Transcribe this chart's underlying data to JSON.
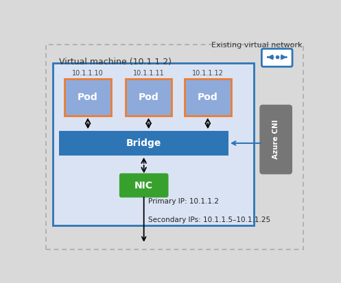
{
  "bg_outer_color": "#d9d9d9",
  "bg_vm_fill": "#dae3f3",
  "bg_vm_edge": "#2e75b6",
  "pod_fill": "#8eaadb",
  "pod_edge": "#ed7d31",
  "bridge_fill": "#2e75b6",
  "bridge_text_color": "#ffffff",
  "nic_fill": "#38a12e",
  "nic_text_color": "#ffffff",
  "azure_cni_fill": "#767676",
  "azure_cni_text_color": "#ffffff",
  "existing_vnet_label": "Existing virtual network",
  "vm_label": "Virtual machine (10.1.1.2)",
  "pod_ips": [
    "10.1.1.10",
    "10.1.1.11",
    "10.1.1.12"
  ],
  "bridge_label": "Bridge",
  "nic_label": "NIC",
  "azure_cni_label": "Azure CNI",
  "primary_ip_label": "Primary IP: 10.1.1.2",
  "secondary_ip_label": "Secondary IPs: 10.1.1.5–10.1.1.25",
  "icon_color": "#2e75b6",
  "arrow_color": "#000000",
  "solid_arrow_color": "#2e75b6"
}
